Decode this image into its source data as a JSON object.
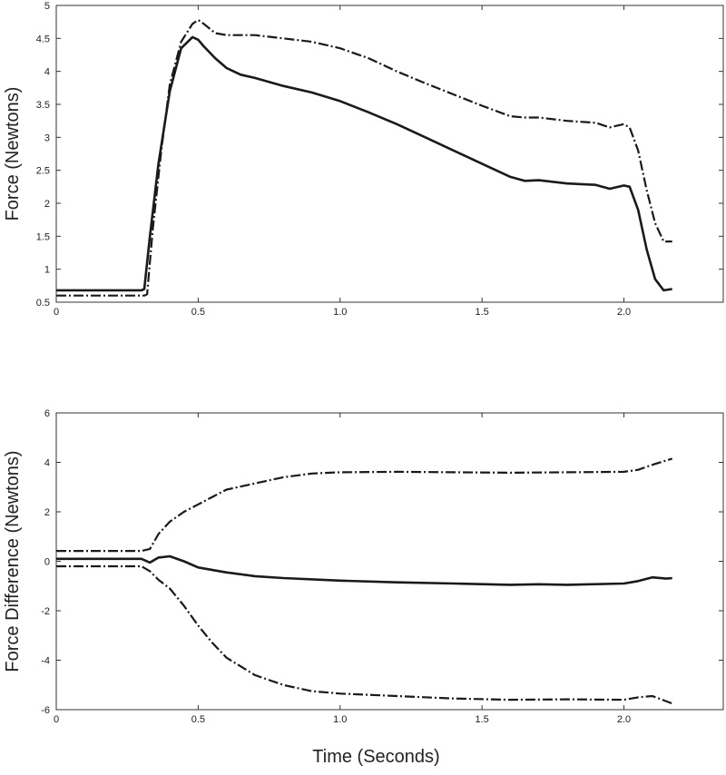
{
  "chart_data": [
    {
      "type": "line",
      "xlabel": "",
      "ylabel": "Force (Newtons)",
      "xlim": [
        0,
        2.35
      ],
      "ylim": [
        0.5,
        5
      ],
      "xticks": [
        0,
        0.5,
        1.0,
        1.5,
        2.0
      ],
      "xtick_labels": [
        "0",
        "0.5",
        "1.0",
        "1.5",
        "2.0"
      ],
      "yticks": [
        0.5,
        1,
        1.5,
        2,
        2.5,
        3,
        3.5,
        4,
        4.5,
        5
      ],
      "ytick_labels": [
        "0.5",
        "1",
        "1.5",
        "2",
        "2.5",
        "3",
        "3.5",
        "4",
        "4.5",
        "5"
      ],
      "grid": false,
      "series": [
        {
          "style": "solid",
          "x": [
            0,
            0.2,
            0.3,
            0.31,
            0.33,
            0.36,
            0.4,
            0.44,
            0.48,
            0.5,
            0.52,
            0.56,
            0.6,
            0.65,
            0.7,
            0.8,
            0.9,
            1.0,
            1.1,
            1.2,
            1.3,
            1.4,
            1.5,
            1.6,
            1.65,
            1.7,
            1.8,
            1.9,
            1.95,
            2.0,
            2.02,
            2.05,
            2.08,
            2.11,
            2.14,
            2.17
          ],
          "y": [
            0.68,
            0.68,
            0.68,
            0.7,
            1.5,
            2.6,
            3.7,
            4.35,
            4.52,
            4.48,
            4.38,
            4.2,
            4.05,
            3.95,
            3.9,
            3.78,
            3.68,
            3.55,
            3.38,
            3.2,
            3.0,
            2.8,
            2.6,
            2.4,
            2.34,
            2.35,
            2.3,
            2.28,
            2.22,
            2.27,
            2.25,
            1.9,
            1.3,
            0.85,
            0.68,
            0.7
          ]
        },
        {
          "style": "dash-dot",
          "x": [
            0,
            0.2,
            0.31,
            0.32,
            0.34,
            0.37,
            0.4,
            0.44,
            0.48,
            0.5,
            0.52,
            0.56,
            0.6,
            0.7,
            0.8,
            0.9,
            1.0,
            1.1,
            1.2,
            1.3,
            1.4,
            1.5,
            1.6,
            1.65,
            1.7,
            1.8,
            1.9,
            1.95,
            2.0,
            2.02,
            2.05,
            2.08,
            2.11,
            2.14,
            2.17
          ],
          "y": [
            0.6,
            0.6,
            0.6,
            0.62,
            1.6,
            2.8,
            3.8,
            4.45,
            4.72,
            4.78,
            4.72,
            4.58,
            4.55,
            4.55,
            4.5,
            4.45,
            4.35,
            4.2,
            4.0,
            3.82,
            3.65,
            3.48,
            3.32,
            3.3,
            3.3,
            3.25,
            3.22,
            3.15,
            3.2,
            3.15,
            2.8,
            2.2,
            1.7,
            1.42,
            1.42
          ]
        }
      ]
    },
    {
      "type": "line",
      "xlabel": "Time (Seconds)",
      "ylabel": "Force Difference (Newtons)",
      "xlim": [
        0,
        2.35
      ],
      "ylim": [
        -6,
        6
      ],
      "xticks": [
        0,
        0.5,
        1.0,
        1.5,
        2.0
      ],
      "xtick_labels": [
        "0",
        "0.5",
        "1.0",
        "1.5",
        "2.0"
      ],
      "yticks": [
        -6,
        -4,
        -2,
        0,
        2,
        4,
        6
      ],
      "ytick_labels": [
        "-6",
        "-4",
        "-2",
        "0",
        "2",
        "4",
        "6"
      ],
      "grid": false,
      "series": [
        {
          "style": "solid",
          "x": [
            0,
            0.3,
            0.33,
            0.36,
            0.4,
            0.45,
            0.5,
            0.6,
            0.7,
            0.8,
            1.0,
            1.2,
            1.4,
            1.6,
            1.7,
            1.8,
            2.0,
            2.05,
            2.1,
            2.15,
            2.17
          ],
          "y": [
            0.1,
            0.1,
            -0.05,
            0.15,
            0.2,
            0.0,
            -0.25,
            -0.45,
            -0.6,
            -0.68,
            -0.78,
            -0.85,
            -0.9,
            -0.95,
            -0.93,
            -0.95,
            -0.9,
            -0.8,
            -0.65,
            -0.7,
            -0.68
          ],
          "name": ""
        },
        {
          "style": "dash-dot",
          "x": [
            0,
            0.3,
            0.33,
            0.36,
            0.4,
            0.45,
            0.5,
            0.55,
            0.6,
            0.7,
            0.8,
            0.9,
            1.0,
            1.2,
            1.4,
            1.6,
            1.8,
            2.0,
            2.05,
            2.1,
            2.17
          ],
          "y": [
            0.42,
            0.42,
            0.5,
            1.1,
            1.6,
            2.0,
            2.3,
            2.6,
            2.9,
            3.15,
            3.4,
            3.55,
            3.6,
            3.62,
            3.6,
            3.58,
            3.6,
            3.62,
            3.7,
            3.9,
            4.15
          ]
        },
        {
          "style": "dash-dot",
          "x": [
            0,
            0.3,
            0.33,
            0.36,
            0.4,
            0.45,
            0.5,
            0.55,
            0.6,
            0.7,
            0.8,
            0.9,
            1.0,
            1.2,
            1.4,
            1.6,
            1.8,
            2.0,
            2.05,
            2.1,
            2.17
          ],
          "y": [
            -0.2,
            -0.2,
            -0.4,
            -0.75,
            -1.1,
            -1.8,
            -2.6,
            -3.3,
            -3.9,
            -4.6,
            -5.0,
            -5.25,
            -5.35,
            -5.45,
            -5.55,
            -5.6,
            -5.58,
            -5.6,
            -5.5,
            -5.45,
            -5.75
          ]
        }
      ]
    }
  ]
}
